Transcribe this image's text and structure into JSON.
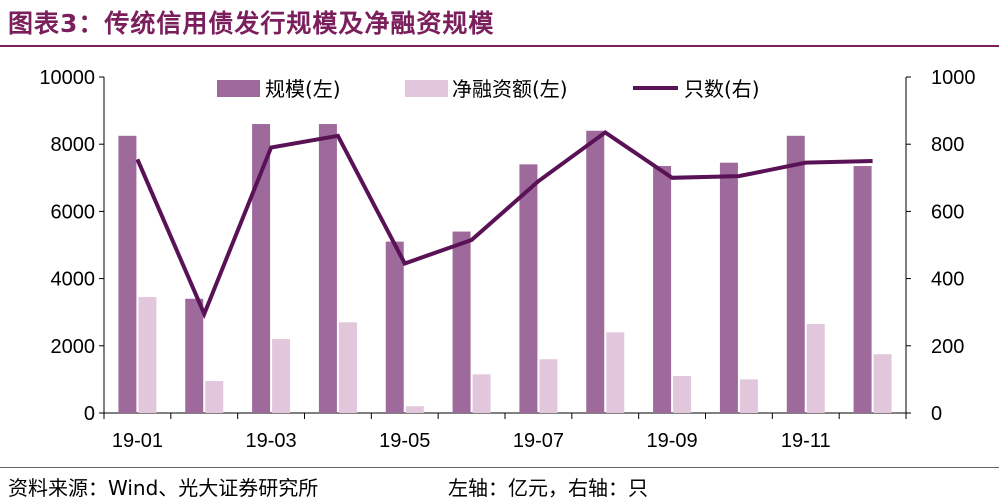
{
  "header": {
    "title": "图表3：传统信用债发行规模及净融资规模"
  },
  "footer": {
    "source": "资料来源：Wind、光大证券研究所",
    "axis_note": "左轴：亿元，右轴：只"
  },
  "colors": {
    "scale": "#9e6a9c",
    "net": "#e2c6dc",
    "count": "#5a1257",
    "title": "#7a1e5c"
  },
  "chart_data": {
    "type": "bar",
    "categories": [
      "19-01",
      "19-02",
      "19-03",
      "19-04",
      "19-05",
      "19-06",
      "19-07",
      "19-08",
      "19-09",
      "19-10",
      "19-11",
      "19-12"
    ],
    "x_tick_labels": [
      "19-01",
      "",
      "19-03",
      "",
      "19-05",
      "",
      "19-07",
      "",
      "19-09",
      "",
      "19-11",
      ""
    ],
    "series": [
      {
        "name": "规模(左)",
        "type": "bar",
        "axis": "left",
        "values": [
          8250,
          3400,
          8600,
          8600,
          5100,
          5400,
          7400,
          8400,
          7350,
          7450,
          8250,
          7350
        ]
      },
      {
        "name": "净融资额(左)",
        "type": "bar",
        "axis": "left",
        "values": [
          3450,
          950,
          2200,
          2700,
          200,
          1150,
          1600,
          2400,
          1100,
          1000,
          2650,
          1750
        ]
      },
      {
        "name": "只数(右)",
        "type": "line",
        "axis": "right",
        "values": [
          755,
          295,
          790,
          825,
          445,
          515,
          690,
          835,
          700,
          705,
          745,
          750
        ]
      }
    ],
    "y_left": {
      "min": 0,
      "max": 10000,
      "ticks": [
        0,
        2000,
        4000,
        6000,
        8000,
        10000
      ]
    },
    "y_right": {
      "min": 0,
      "max": 1000,
      "ticks": [
        0,
        200,
        400,
        600,
        800,
        1000
      ]
    },
    "legend_position": "top",
    "grid": false
  }
}
